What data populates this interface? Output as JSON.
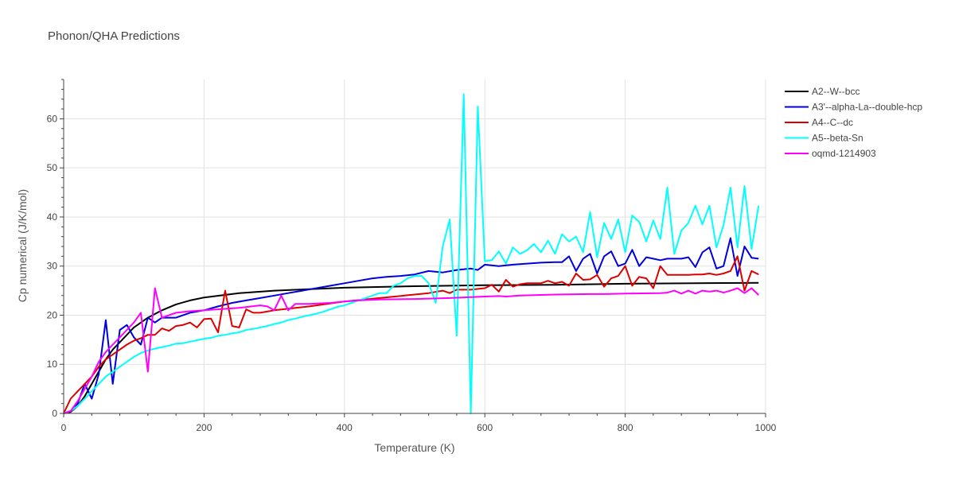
{
  "chart_data": {
    "type": "line",
    "title": "Phonon/QHA Predictions",
    "xlabel": "Temperature (K)",
    "ylabel": "Cp numerical (J/K/mol)",
    "xlim": [
      0,
      1000
    ],
    "ylim": [
      0,
      68
    ],
    "x_ticks": [
      0,
      200,
      400,
      600,
      800,
      1000
    ],
    "x_tick_labels": [
      "0",
      "200",
      "400",
      "600",
      "800",
      "1000"
    ],
    "y_ticks": [
      0,
      10,
      20,
      30,
      40,
      50,
      60
    ],
    "y_tick_labels": [
      "0",
      "10",
      "20",
      "30",
      "40",
      "50",
      "60"
    ],
    "grid": true,
    "legend_position": "right",
    "series": [
      {
        "name": "A2--W--bcc",
        "color": "#000000",
        "x": [
          0,
          10,
          20,
          30,
          40,
          50,
          60,
          70,
          80,
          100,
          120,
          140,
          160,
          180,
          200,
          250,
          300,
          350,
          400,
          500,
          600,
          700,
          800,
          900,
          990
        ],
        "y": [
          0,
          0.3,
          1.5,
          3.5,
          6,
          8.5,
          11,
          13,
          14.5,
          17.5,
          19.5,
          21,
          22.2,
          23,
          23.6,
          24.5,
          25,
          25.3,
          25.6,
          25.9,
          26.1,
          26.2,
          26.4,
          26.5,
          26.6
        ]
      },
      {
        "name": "A3'--alpha-La--double-hcp",
        "color": "#0000dd",
        "x": [
          0,
          10,
          20,
          30,
          40,
          50,
          60,
          70,
          80,
          90,
          100,
          110,
          120,
          130,
          140,
          160,
          180,
          200,
          220,
          240,
          260,
          280,
          300,
          320,
          340,
          360,
          380,
          400,
          420,
          440,
          460,
          480,
          500,
          520,
          540,
          560,
          580,
          590,
          600,
          620,
          640,
          660,
          680,
          700,
          710,
          720,
          730,
          740,
          750,
          760,
          770,
          780,
          790,
          800,
          810,
          820,
          830,
          840,
          850,
          860,
          870,
          880,
          890,
          900,
          910,
          920,
          930,
          940,
          950,
          960,
          970,
          980,
          990
        ],
        "y": [
          0,
          0.5,
          2,
          6,
          3,
          8,
          19,
          6,
          17,
          18,
          15.5,
          14,
          19.5,
          18.5,
          19.5,
          19.5,
          20.5,
          21,
          21.8,
          22.5,
          23,
          23.5,
          24,
          24.5,
          25,
          25.5,
          26,
          26.5,
          27,
          27.5,
          27.8,
          28,
          28.3,
          29,
          28.7,
          29.2,
          29.5,
          29.2,
          30.3,
          30,
          30.3,
          30.5,
          30.7,
          30.8,
          30.8,
          32,
          29,
          31.5,
          32.5,
          28.5,
          32,
          33,
          30,
          30.5,
          33.3,
          30,
          31.8,
          31.5,
          31.2,
          31.5,
          31.5,
          31.5,
          31.8,
          29.8,
          32.8,
          33.8,
          29.5,
          30,
          35.7,
          28,
          34,
          31.7,
          31.5
        ]
      },
      {
        "name": "A4--C--dc",
        "color": "#dd0000",
        "x": [
          0,
          10,
          20,
          30,
          40,
          50,
          60,
          70,
          80,
          90,
          100,
          110,
          120,
          130,
          140,
          150,
          160,
          170,
          180,
          190,
          200,
          210,
          220,
          230,
          240,
          250,
          260,
          270,
          280,
          300,
          350,
          400,
          450,
          500,
          520,
          540,
          550,
          560,
          580,
          600,
          610,
          620,
          630,
          640,
          650,
          660,
          670,
          680,
          690,
          700,
          710,
          720,
          730,
          740,
          750,
          760,
          770,
          780,
          790,
          800,
          810,
          820,
          830,
          840,
          850,
          860,
          870,
          880,
          890,
          900,
          910,
          920,
          930,
          940,
          950,
          960,
          970,
          980,
          990
        ],
        "y": [
          0,
          3,
          4.5,
          6,
          7.5,
          9.5,
          11,
          12,
          13,
          14,
          14.8,
          15.3,
          16,
          16,
          17.3,
          16.8,
          17.8,
          18,
          18.5,
          17.5,
          19.2,
          19.3,
          16.5,
          25,
          17.8,
          17.5,
          21.2,
          20.5,
          20.5,
          21,
          21.8,
          22.8,
          23.5,
          24.2,
          24.5,
          25,
          24.5,
          25.2,
          25.2,
          25.5,
          26.2,
          24.8,
          27.2,
          25.8,
          26.3,
          26.5,
          26.5,
          26.5,
          27,
          26.5,
          26.8,
          26,
          28.5,
          27.2,
          27.3,
          28.2,
          25.8,
          27.5,
          28,
          30,
          26,
          27.8,
          27.5,
          25.5,
          30,
          28.2,
          28.2,
          28.2,
          28.2,
          28.3,
          28.3,
          28.5,
          28.2,
          28.5,
          29,
          32,
          25,
          29,
          28.3
        ]
      },
      {
        "name": "A5--beta-Sn",
        "color": "#00ffff",
        "x": [
          0,
          10,
          20,
          30,
          40,
          50,
          60,
          70,
          80,
          90,
          100,
          110,
          120,
          130,
          140,
          150,
          160,
          170,
          180,
          190,
          200,
          210,
          220,
          230,
          240,
          250,
          260,
          270,
          280,
          290,
          300,
          310,
          320,
          330,
          340,
          350,
          360,
          370,
          380,
          390,
          400,
          410,
          420,
          430,
          440,
          450,
          460,
          470,
          480,
          490,
          500,
          510,
          520,
          530,
          540,
          550,
          560,
          570,
          580,
          590,
          600,
          610,
          620,
          630,
          640,
          650,
          660,
          670,
          680,
          690,
          700,
          710,
          720,
          730,
          740,
          750,
          760,
          770,
          780,
          790,
          800,
          810,
          820,
          830,
          840,
          850,
          860,
          870,
          880,
          890,
          900,
          910,
          920,
          930,
          940,
          950,
          960,
          970,
          980,
          990
        ],
        "y": [
          0,
          0.5,
          1.5,
          3,
          4.5,
          6,
          7.5,
          8.5,
          9.5,
          10.5,
          11.5,
          12.3,
          12.8,
          13.2,
          13.5,
          13.8,
          14.2,
          14.3,
          14.6,
          14.9,
          15.2,
          15.4,
          15.8,
          16,
          16.3,
          16.5,
          17,
          17.2,
          17.5,
          17.8,
          18.2,
          18.5,
          19,
          19.3,
          19.7,
          20,
          20.3,
          20.7,
          21.2,
          21.7,
          22,
          22.5,
          23,
          23.5,
          24,
          24.5,
          24.5,
          26,
          26.5,
          27.5,
          28,
          28,
          26.5,
          22.5,
          34,
          39.5,
          15.8,
          65,
          0,
          62.5,
          31,
          31.2,
          33,
          30.5,
          33.8,
          32.5,
          33.2,
          34.5,
          32.8,
          35.2,
          32.5,
          36.5,
          35,
          36,
          32.8,
          41,
          31.8,
          38.8,
          35.5,
          39.5,
          32.8,
          40.3,
          39,
          35,
          39.3,
          35.5,
          46,
          32.5,
          37.2,
          38.8,
          42.3,
          38.5,
          42.3,
          33.8,
          38.3,
          46,
          33.8,
          46.3,
          33.5,
          42.3
        ]
      },
      {
        "name": "oqmd-1214903",
        "color": "#ff00ff",
        "x": [
          0,
          10,
          20,
          30,
          40,
          50,
          60,
          70,
          80,
          90,
          100,
          110,
          120,
          130,
          140,
          150,
          160,
          180,
          200,
          250,
          280,
          290,
          300,
          310,
          320,
          330,
          350,
          380,
          400,
          420,
          450,
          500,
          550,
          600,
          620,
          630,
          650,
          700,
          750,
          770,
          800,
          850,
          860,
          870,
          880,
          890,
          900,
          910,
          920,
          930,
          940,
          950,
          960,
          970,
          980,
          990
        ],
        "y": [
          0,
          0.5,
          2.5,
          5,
          7.5,
          10.5,
          12.5,
          14,
          15.5,
          17,
          18.5,
          20.5,
          8.5,
          25.5,
          19.5,
          20,
          20.5,
          20.8,
          21,
          21.5,
          22,
          21.8,
          21,
          24,
          21,
          22.3,
          22.3,
          22.5,
          22.8,
          23,
          23.2,
          23.3,
          23.5,
          23.8,
          23.9,
          23.8,
          24,
          24.2,
          24.3,
          24.3,
          24.4,
          24.5,
          24.6,
          25,
          24.4,
          25,
          24.4,
          25,
          24.8,
          25,
          24.6,
          25,
          25.5,
          24.5,
          25.5,
          24.1
        ]
      }
    ]
  }
}
